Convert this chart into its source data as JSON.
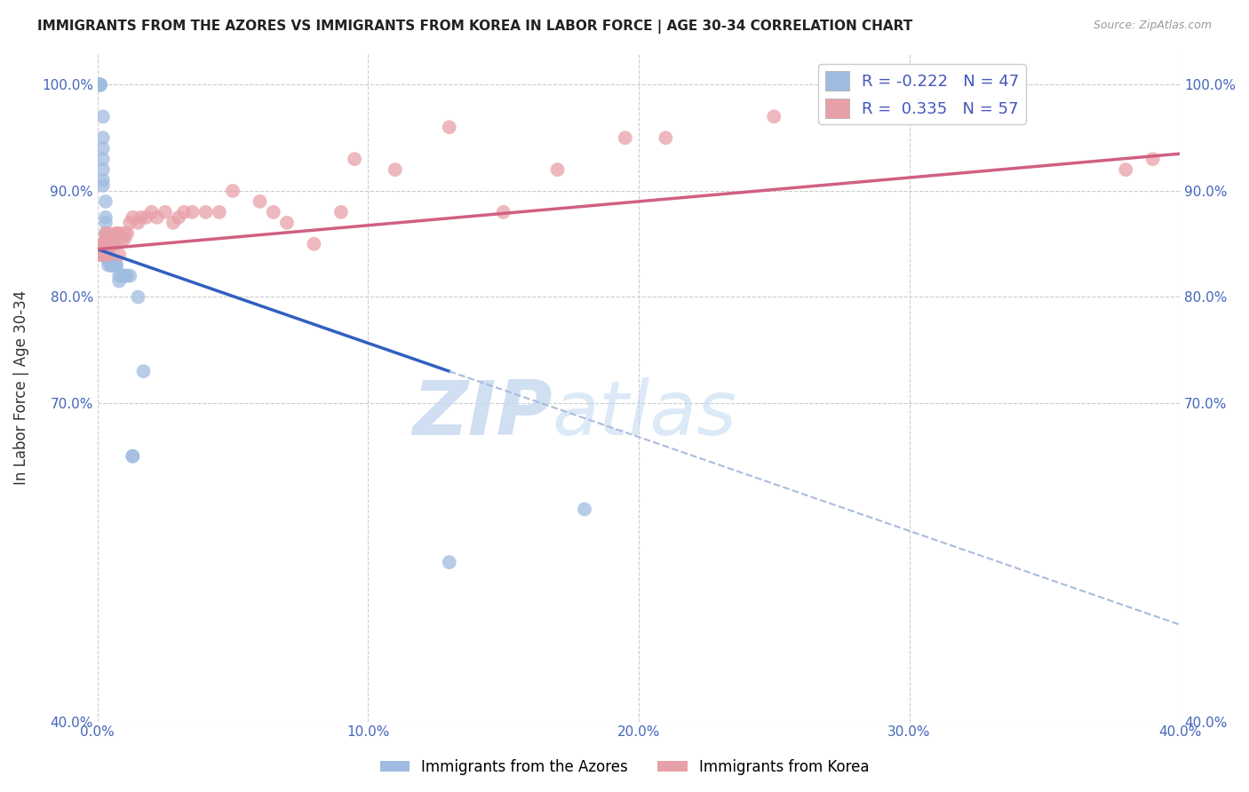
{
  "title": "IMMIGRANTS FROM THE AZORES VS IMMIGRANTS FROM KOREA IN LABOR FORCE | AGE 30-34 CORRELATION CHART",
  "source": "Source: ZipAtlas.com",
  "ylabel": "In Labor Force | Age 30-34",
  "xlim": [
    0.0,
    0.4
  ],
  "ylim": [
    0.4,
    1.03
  ],
  "ytick_labels": [
    "40.0%",
    "70.0%",
    "80.0%",
    "90.0%",
    "100.0%"
  ],
  "ytick_values": [
    0.4,
    0.7,
    0.8,
    0.9,
    1.0
  ],
  "xtick_labels": [
    "0.0%",
    "10.0%",
    "20.0%",
    "30.0%",
    "40.0%"
  ],
  "xtick_values": [
    0.0,
    0.1,
    0.2,
    0.3,
    0.4
  ],
  "azores_color": "#a0bce0",
  "korea_color": "#e8a0a8",
  "azores_R": -0.222,
  "azores_N": 47,
  "korea_R": 0.335,
  "korea_N": 57,
  "azores_line_color": "#3060c0",
  "korea_line_color": "#d06080",
  "dashed_line_color": "#aabbdd",
  "background_color": "#ffffff",
  "grid_color": "#cccccc",
  "azores_x": [
    0.001,
    0.001,
    0.001,
    0.001,
    0.001,
    0.002,
    0.002,
    0.002,
    0.002,
    0.002,
    0.002,
    0.002,
    0.003,
    0.003,
    0.003,
    0.003,
    0.003,
    0.003,
    0.003,
    0.003,
    0.004,
    0.004,
    0.004,
    0.004,
    0.004,
    0.005,
    0.005,
    0.005,
    0.005,
    0.006,
    0.006,
    0.006,
    0.007,
    0.007,
    0.008,
    0.008,
    0.009,
    0.01,
    0.01,
    0.011,
    0.012,
    0.013,
    0.013,
    0.015,
    0.017,
    0.13,
    0.18
  ],
  "azores_y": [
    1.0,
    1.0,
    1.0,
    1.0,
    1.0,
    0.97,
    0.95,
    0.94,
    0.93,
    0.92,
    0.91,
    0.905,
    0.89,
    0.875,
    0.87,
    0.86,
    0.855,
    0.85,
    0.845,
    0.84,
    0.84,
    0.84,
    0.835,
    0.835,
    0.83,
    0.835,
    0.83,
    0.83,
    0.83,
    0.83,
    0.83,
    0.83,
    0.83,
    0.83,
    0.82,
    0.815,
    0.82,
    0.82,
    0.82,
    0.82,
    0.82,
    0.65,
    0.65,
    0.8,
    0.73,
    0.55,
    0.6
  ],
  "korea_x": [
    0.001,
    0.001,
    0.001,
    0.001,
    0.002,
    0.002,
    0.002,
    0.002,
    0.002,
    0.003,
    0.003,
    0.003,
    0.003,
    0.004,
    0.004,
    0.005,
    0.005,
    0.006,
    0.006,
    0.007,
    0.007,
    0.008,
    0.008,
    0.009,
    0.01,
    0.01,
    0.011,
    0.012,
    0.013,
    0.015,
    0.016,
    0.018,
    0.02,
    0.022,
    0.025,
    0.028,
    0.03,
    0.032,
    0.035,
    0.04,
    0.045,
    0.05,
    0.06,
    0.065,
    0.07,
    0.08,
    0.09,
    0.095,
    0.11,
    0.13,
    0.15,
    0.17,
    0.195,
    0.21,
    0.25,
    0.38,
    0.39
  ],
  "korea_y": [
    0.84,
    0.84,
    0.84,
    0.84,
    0.84,
    0.84,
    0.84,
    0.85,
    0.85,
    0.84,
    0.85,
    0.85,
    0.86,
    0.86,
    0.84,
    0.855,
    0.85,
    0.85,
    0.85,
    0.86,
    0.86,
    0.86,
    0.84,
    0.855,
    0.86,
    0.855,
    0.86,
    0.87,
    0.875,
    0.87,
    0.875,
    0.875,
    0.88,
    0.875,
    0.88,
    0.87,
    0.875,
    0.88,
    0.88,
    0.88,
    0.88,
    0.9,
    0.89,
    0.88,
    0.87,
    0.85,
    0.88,
    0.93,
    0.92,
    0.96,
    0.88,
    0.92,
    0.95,
    0.95,
    0.97,
    0.92,
    0.93
  ]
}
